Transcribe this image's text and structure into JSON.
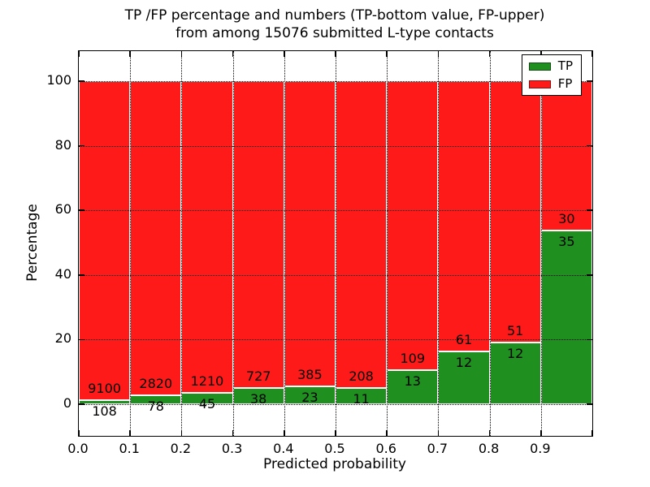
{
  "figure": {
    "title_line1": "TP /FP percentage and numbers (TP-bottom value, FP-upper)",
    "title_line2": "from among 15076 submitted L-type contacts"
  },
  "chart_data": {
    "type": "bar",
    "stacked": true,
    "percent_normalized": true,
    "title": "TP /FP percentage and numbers (TP-bottom value, FP-upper)\nfrom among 15076 submitted L-type contacts",
    "xlabel": "Predicted probability",
    "ylabel": "Percentage",
    "total_contacts": 15076,
    "bin_edges": [
      0.0,
      0.1,
      0.2,
      0.3,
      0.4,
      0.5,
      0.6,
      0.7,
      0.8,
      0.9,
      1.0
    ],
    "x_tick_labels": [
      "0.0",
      "0.1",
      "0.2",
      "0.3",
      "0.4",
      "0.5",
      "0.6",
      "0.7",
      "0.8",
      "0.9"
    ],
    "y_tick_values": [
      0,
      20,
      40,
      60,
      80,
      100
    ],
    "y_tick_labels": [
      "0",
      "20",
      "40",
      "60",
      "80",
      "100"
    ],
    "ylim": [
      -10,
      110
    ],
    "grid": "dotted",
    "legend_position": "upper right",
    "series": [
      {
        "name": "TP",
        "color": "#1f8f1f",
        "counts": [
          108,
          78,
          45,
          38,
          23,
          11,
          13,
          12,
          12,
          35
        ]
      },
      {
        "name": "FP",
        "color": "#ff1a1a",
        "counts": [
          9100,
          2820,
          1210,
          727,
          385,
          208,
          109,
          61,
          51,
          30
        ]
      }
    ],
    "tp_percent_of_bin": [
      1.17,
      2.69,
      3.59,
      4.97,
      5.64,
      5.02,
      10.66,
      16.44,
      19.05,
      53.85
    ]
  }
}
